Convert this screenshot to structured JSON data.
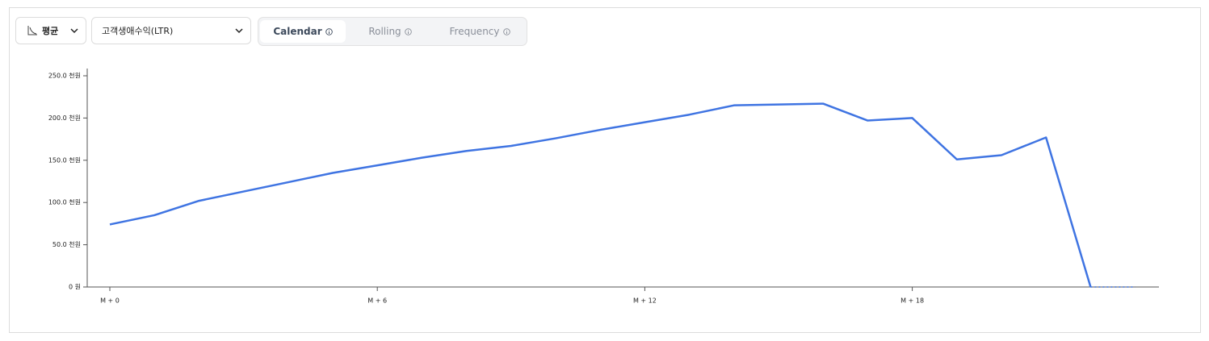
{
  "controls": {
    "aggregate": "평균",
    "metric": "고객생애수익(LTR)",
    "tabs": [
      "Calendar",
      "Rolling",
      "Frequency"
    ],
    "selected_tab": 0
  },
  "chart_data": {
    "type": "line",
    "categories": [
      "M + 0",
      null,
      null,
      null,
      null,
      null,
      "M + 6",
      null,
      null,
      null,
      null,
      null,
      "M + 12",
      null,
      null,
      null,
      null,
      null,
      "M + 18",
      null,
      null,
      null,
      null,
      null
    ],
    "series": [
      {
        "color": "#3f74e2",
        "values": [
          74,
          85,
          102,
          113,
          124,
          135,
          144,
          153,
          161,
          167,
          176,
          186,
          195,
          204,
          215,
          216,
          217,
          197,
          200,
          151,
          156,
          177,
          0,
          0
        ]
      }
    ],
    "dashed_from_index": 22,
    "ylim": [
      0,
      250
    ],
    "yticks": [
      {
        "value": 0,
        "label": "0 원"
      },
      {
        "value": 50,
        "label": "50.0 천원"
      },
      {
        "value": 100,
        "label": "100.0 천원"
      },
      {
        "value": 150,
        "label": "150.0 천원"
      },
      {
        "value": 200,
        "label": "200.0 천원"
      },
      {
        "value": 250,
        "label": "250.0 천원"
      }
    ]
  }
}
